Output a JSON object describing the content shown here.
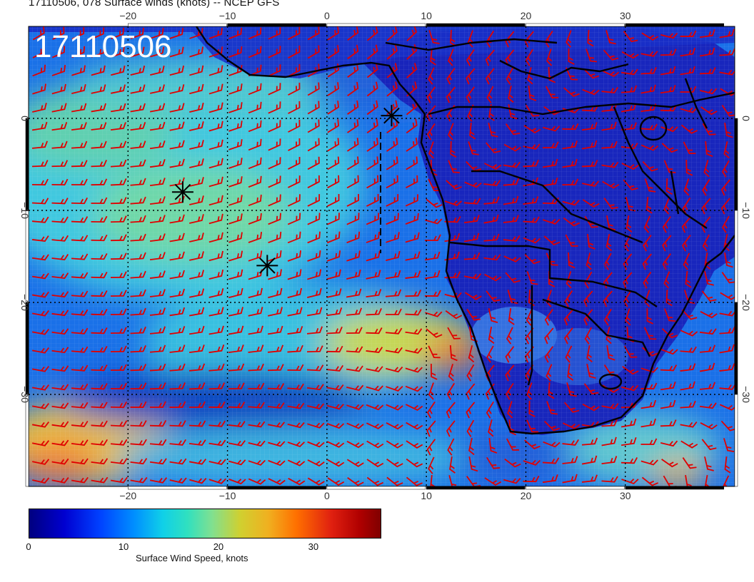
{
  "title": "17110506, 078 Surface winds (knots) -- NCEP GFS",
  "stamp": "17110506",
  "map": {
    "lon_range": [
      -30,
      41
    ],
    "lat_range": [
      -40,
      10
    ],
    "lon_ticks": [
      -20,
      -10,
      0,
      10,
      20,
      30
    ],
    "lat_ticks": [
      0,
      -10,
      -20,
      -30
    ],
    "lon_tick_labels": [
      "−20",
      "−10",
      "0",
      "10",
      "20",
      "30"
    ],
    "lat_tick_labels": [
      "0",
      "−10",
      "−20",
      "−30"
    ],
    "barb_color": "#e00000",
    "coast_color": "#000000"
  },
  "markers": [
    {
      "name": "star-1",
      "lon": -14.5,
      "lat": -8.0
    },
    {
      "name": "star-2",
      "lon": -6.0,
      "lat": -16.0
    },
    {
      "name": "star-3",
      "lon": 6.5,
      "lat": 0.3
    }
  ],
  "colorbar": {
    "label": "Surface Wind Speed, knots",
    "ticks": [
      "0",
      "10",
      "20",
      "30"
    ],
    "tick_values": [
      0,
      10,
      20,
      30
    ],
    "range": [
      0,
      37
    ]
  }
}
